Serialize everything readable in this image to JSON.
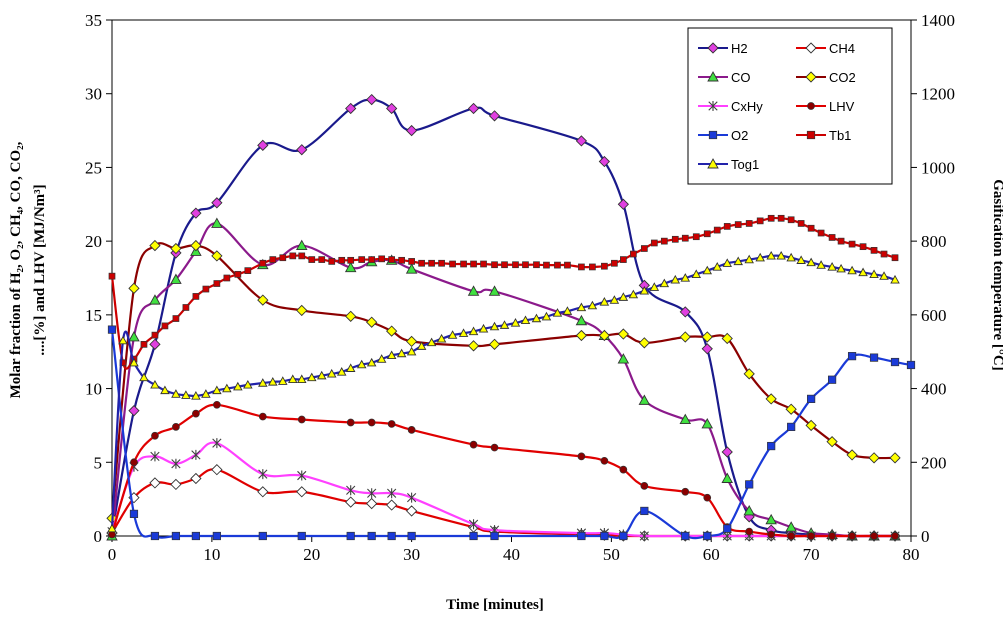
{
  "chart_data": {
    "type": "line",
    "xlabel": "Time [minutes]",
    "ylabel_left_lines": [
      "Molar fraction of H₂, O₂, CH₄, CO, CO₂,",
      "....[%] and LHV  [MJ/Nm³]"
    ],
    "ylabel_right": "Gasification temperature [°C]",
    "xlim": [
      0,
      80
    ],
    "ylim_left": [
      0,
      35
    ],
    "ylim_right": [
      0,
      1400
    ],
    "x_ticks": [
      "0",
      "10",
      "20",
      "30",
      "40",
      "50",
      "60",
      "70",
      "80"
    ],
    "y_left_ticks": [
      "0",
      "5",
      "10",
      "15",
      "20",
      "25",
      "30",
      "35"
    ],
    "y_right_ticks": [
      "0",
      "200",
      "400",
      "600",
      "800",
      "1000",
      "1200",
      "1400"
    ],
    "grid": false,
    "legend_position": "top-right",
    "series": [
      {
        "name": "H2",
        "axis": "left",
        "color": "#1a1a8c",
        "marker": "diamond",
        "marker_fill": "#e040e0",
        "x": [
          0,
          2.2,
          4.3,
          6.4,
          8.4,
          10.5,
          15.1,
          19,
          23.9,
          26,
          28,
          30,
          36.2,
          38.3,
          47,
          49.3,
          51.2,
          53.3,
          57.4,
          59.6,
          61.6,
          63.8,
          66,
          68,
          70,
          72.1,
          74.1,
          76.3,
          78.4
        ],
        "y": [
          0.2,
          8.5,
          13,
          19.2,
          21.9,
          22.6,
          26.5,
          26.2,
          29,
          29.6,
          29,
          27.5,
          29,
          28.5,
          26.8,
          25.4,
          22.5,
          17,
          15.2,
          12.7,
          5.7,
          1.3,
          0.4,
          0.2,
          0.1,
          0.05,
          0,
          0,
          0
        ]
      },
      {
        "name": "CH4",
        "axis": "left",
        "color": "#e00000",
        "marker": "diamond",
        "marker_fill": "#ffffff",
        "x": [
          0,
          2.2,
          4.3,
          6.4,
          8.4,
          10.5,
          15.1,
          19,
          23.9,
          26,
          28,
          30,
          36.2,
          38.3,
          47,
          49.3,
          51.2,
          53.3,
          57.4,
          59.6,
          61.6,
          63.8,
          66,
          68,
          70,
          72.1,
          74.1,
          76.3,
          78.4
        ],
        "y": [
          0.2,
          2.6,
          3.6,
          3.5,
          3.9,
          4.5,
          3,
          3,
          2.3,
          2.2,
          2.1,
          1.7,
          0.6,
          0.3,
          0.1,
          0.05,
          0,
          0,
          0,
          0,
          0,
          0,
          0,
          0,
          0,
          0,
          0,
          0,
          0
        ]
      },
      {
        "name": "CO",
        "axis": "left",
        "color": "#8b1a8b",
        "marker": "triangle",
        "marker_fill": "#40e040",
        "x": [
          0,
          2.2,
          4.3,
          6.4,
          8.4,
          10.5,
          15.1,
          19,
          23.9,
          26,
          28,
          30,
          36.2,
          38.3,
          47,
          49.3,
          51.2,
          53.3,
          57.4,
          59.6,
          61.6,
          63.8,
          66,
          68,
          70,
          72.1,
          74.1,
          76.3,
          78.4
        ],
        "y": [
          0,
          13.5,
          16,
          17.4,
          19.3,
          21.2,
          18.4,
          19.7,
          18.2,
          18.6,
          18.7,
          18.1,
          16.6,
          16.6,
          14.6,
          13.6,
          12,
          9.2,
          7.9,
          7.6,
          3.9,
          1.7,
          1.1,
          0.6,
          0.2,
          0.1,
          0,
          0,
          0
        ]
      },
      {
        "name": "CO2",
        "axis": "left",
        "color": "#8b0000",
        "marker": "diamond",
        "marker_fill": "#ffff00",
        "x": [
          0,
          2.2,
          4.3,
          6.4,
          8.4,
          10.5,
          15.1,
          19,
          23.9,
          26,
          28,
          30,
          36.2,
          38.3,
          47,
          49.3,
          51.2,
          53.3,
          57.4,
          59.6,
          61.6,
          63.8,
          66,
          68,
          70,
          72.1,
          74.1,
          76.3,
          78.4
        ],
        "y": [
          1.2,
          16.8,
          19.7,
          19.5,
          19.7,
          19,
          16,
          15.3,
          14.9,
          14.5,
          13.9,
          13.2,
          12.9,
          13,
          13.6,
          13.6,
          13.7,
          13.1,
          13.5,
          13.5,
          13.4,
          11,
          9.3,
          8.6,
          7.5,
          6.4,
          5.5,
          5.3,
          5.3
        ]
      },
      {
        "name": "CxHy",
        "axis": "left",
        "color": "#ff40ff",
        "marker": "star",
        "marker_fill": "#404040",
        "x": [
          0,
          2.2,
          4.3,
          6.4,
          8.4,
          10.5,
          15.1,
          19,
          23.9,
          26,
          28,
          30,
          36.2,
          38.3,
          47,
          49.3,
          51.2,
          53.3,
          57.4,
          59.6,
          61.6,
          63.8,
          66,
          68,
          70,
          72.1,
          74.1,
          76.3,
          78.4
        ],
        "y": [
          0.3,
          4.7,
          5.4,
          4.9,
          5.5,
          6.3,
          4.2,
          4.1,
          3.1,
          2.9,
          2.9,
          2.6,
          0.8,
          0.4,
          0.2,
          0.2,
          0.1,
          0,
          0,
          0,
          0,
          0,
          0,
          0,
          0,
          0,
          0,
          0,
          0
        ]
      },
      {
        "name": "LHV",
        "axis": "left",
        "color": "#e00000",
        "marker": "circle",
        "marker_fill": "#8b0000",
        "x": [
          0,
          2.2,
          4.3,
          6.4,
          8.4,
          10.5,
          15.1,
          19,
          23.9,
          26,
          28,
          30,
          36.2,
          38.3,
          47,
          49.3,
          51.2,
          53.3,
          57.4,
          59.6,
          61.6,
          63.8,
          66,
          68,
          70,
          72.1,
          74.1,
          76.3,
          78.4
        ],
        "y": [
          0.1,
          5,
          6.8,
          7.4,
          8.3,
          8.9,
          8.1,
          7.9,
          7.7,
          7.7,
          7.6,
          7.2,
          6.2,
          6,
          5.4,
          5.1,
          4.5,
          3.4,
          3,
          2.6,
          0.6,
          0.3,
          0.1,
          0,
          0,
          0,
          0,
          0,
          0
        ]
      },
      {
        "name": "O2",
        "axis": "left",
        "color": "#1a3ad8",
        "marker": "square",
        "marker_fill": "#1a3ad8",
        "x": [
          0,
          2.2,
          4.3,
          6.4,
          8.4,
          10.5,
          15.1,
          19,
          23.9,
          26,
          28,
          30,
          36.2,
          38.3,
          47,
          49.3,
          51.2,
          53.3,
          57.4,
          59.6,
          61.6,
          63.8,
          66,
          68,
          70,
          72.1,
          74.1,
          76.3,
          78.4,
          80
        ],
        "y": [
          14,
          1.5,
          0,
          0,
          0,
          0,
          0,
          0,
          0,
          0,
          0,
          0,
          0,
          0,
          0,
          0,
          0,
          1.7,
          0,
          0,
          0.5,
          3.5,
          6.1,
          7.4,
          9.3,
          10.6,
          12.2,
          12.1,
          11.8,
          11.6
        ]
      },
      {
        "name": "Tb1",
        "axis": "right",
        "color": "#cc0000",
        "marker": "square",
        "marker_fill": "#cc0000",
        "x": [
          0,
          1.1,
          2.2,
          3.2,
          4.3,
          5.3,
          6.4,
          7.4,
          8.4,
          9.4,
          10.5,
          11.5,
          12.6,
          13.6,
          15.1,
          16.1,
          17.1,
          18.1,
          19,
          20,
          21,
          22,
          23,
          23.9,
          25,
          26,
          27,
          28,
          29,
          30,
          31,
          32,
          33,
          34.1,
          35.2,
          36.2,
          37.2,
          38.3,
          39.3,
          40.4,
          41.4,
          42.5,
          43.5,
          44.6,
          45.6,
          47,
          48.1,
          49.3,
          50.3,
          51.2,
          52.2,
          53.3,
          54.3,
          55.3,
          56.4,
          57.4,
          58.5,
          59.6,
          60.6,
          61.6,
          62.7,
          63.8,
          64.9,
          66,
          67,
          68,
          69,
          70,
          71,
          72.1,
          73,
          74.1,
          75.2,
          76.3,
          77.3,
          78.4
        ],
        "y": [
          705,
          470,
          480,
          520,
          545,
          570,
          590,
          620,
          650,
          670,
          685,
          700,
          710,
          720,
          740,
          750,
          755,
          760,
          760,
          750,
          750,
          745,
          748,
          748,
          750,
          750,
          752,
          750,
          748,
          745,
          740,
          740,
          740,
          738,
          738,
          738,
          738,
          736,
          736,
          736,
          736,
          736,
          735,
          735,
          735,
          730,
          730,
          732,
          740,
          750,
          765,
          780,
          795,
          800,
          805,
          808,
          812,
          820,
          830,
          840,
          845,
          848,
          855,
          862,
          862,
          858,
          848,
          835,
          822,
          810,
          800,
          792,
          785,
          775,
          765,
          755
        ]
      },
      {
        "name": "Tog1",
        "axis": "right",
        "color": "#2222aa",
        "marker": "triangle",
        "marker_fill": "#ffff00",
        "x": [
          0,
          1.1,
          2.2,
          3.2,
          4.3,
          5.3,
          6.4,
          7.4,
          8.4,
          9.4,
          10.5,
          11.5,
          12.6,
          13.6,
          15.1,
          16.1,
          17.1,
          18.1,
          19,
          20,
          21,
          22,
          23,
          23.9,
          25,
          26,
          27,
          28,
          29,
          30,
          31,
          32,
          33,
          34.1,
          35.2,
          36.2,
          37.2,
          38.3,
          39.3,
          40.4,
          41.4,
          42.5,
          43.5,
          44.6,
          45.6,
          47,
          48.1,
          49.3,
          50.3,
          51.2,
          52.2,
          53.3,
          54.3,
          55.3,
          56.4,
          57.4,
          58.5,
          59.6,
          60.6,
          61.6,
          62.7,
          63.8,
          64.9,
          66,
          67,
          68,
          69,
          70,
          71,
          72.1,
          73,
          74.1,
          75.2,
          76.3,
          77.3,
          78.4
        ],
        "y": [
          20,
          530,
          470,
          430,
          410,
          395,
          385,
          382,
          380,
          385,
          395,
          400,
          405,
          410,
          415,
          418,
          420,
          425,
          425,
          430,
          435,
          440,
          445,
          455,
          465,
          470,
          480,
          490,
          495,
          500,
          515,
          525,
          535,
          545,
          550,
          555,
          562,
          568,
          572,
          578,
          585,
          590,
          595,
          605,
          610,
          620,
          625,
          635,
          640,
          648,
          655,
          665,
          675,
          685,
          695,
          700,
          710,
          720,
          730,
          740,
          745,
          750,
          755,
          760,
          760,
          755,
          748,
          742,
          735,
          730,
          725,
          720,
          715,
          710,
          705,
          695
        ]
      }
    ]
  }
}
